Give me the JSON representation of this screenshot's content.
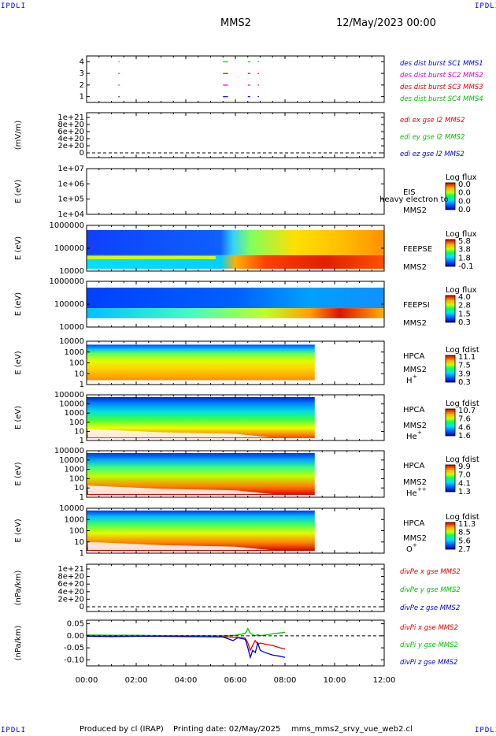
{
  "header": {
    "left_logo": "IPDLI",
    "right_logo": "IPDLI",
    "mission": "MMS2",
    "datetime": "12/May/2023 00:00"
  },
  "footer": {
    "produced_by": "Produced by cl (IRAP)",
    "printing_date": "Printing date: 02/May/2025",
    "file": "mms_mms2_srvy_vue_web2.cl",
    "logo_left": "IPDLI",
    "logo_right": "IPDLI"
  },
  "x_axis": {
    "ticks": [
      "00:00",
      "02:00",
      "04:00",
      "06:00",
      "08:00",
      "10:00",
      "12:00"
    ],
    "range_hours": [
      0,
      12
    ]
  },
  "colors": {
    "red": "#e00000",
    "magenta": "#d000d0",
    "green": "#00c000",
    "blue": "#0000cc",
    "frame": "#000000"
  },
  "chart_data": [
    {
      "type": "scatter",
      "panel": "burst",
      "yticks": [
        "4",
        "3",
        "2",
        "1"
      ],
      "ylim": [
        0.5,
        4.5
      ],
      "legend": [
        {
          "text": "des dist burst SC1 MMS1",
          "color": "#0000cc"
        },
        {
          "text": "des dist burst SC2 MMS2",
          "color": "#d000d0"
        },
        {
          "text": "des dist burst SC3 MMS3",
          "color": "#e00000"
        },
        {
          "text": "des dist burst SC4 MMS4",
          "color": "#00c000"
        }
      ],
      "series": [
        {
          "name": "des dist burst SC1 MMS1",
          "y": 1,
          "x_hours": [
            [
              1.28,
              1.3
            ],
            [
              5.5,
              5.7
            ],
            [
              6.5,
              6.6
            ],
            [
              6.9,
              6.95
            ]
          ]
        },
        {
          "name": "des dist burst SC2 MMS2",
          "y": 2,
          "x_hours": [
            [
              1.28,
              1.3
            ],
            [
              5.5,
              5.7
            ],
            [
              6.5,
              6.6
            ],
            [
              6.9,
              6.95
            ]
          ]
        },
        {
          "name": "des dist burst SC3 MMS3",
          "y": 3,
          "x_hours": [
            [
              1.28,
              1.3
            ],
            [
              5.5,
              5.7
            ],
            [
              6.5,
              6.6
            ],
            [
              6.9,
              6.95
            ]
          ]
        },
        {
          "name": "des dist burst SC4 MMS4",
          "y": 4,
          "x_hours": [
            [
              1.28,
              1.3
            ],
            [
              5.5,
              5.7
            ],
            [
              6.5,
              6.6
            ],
            [
              6.9,
              6.95
            ]
          ]
        }
      ]
    },
    {
      "type": "line",
      "panel": "edi",
      "ylabel": "(mV/m)",
      "yticks": [
        "1e+21",
        "8e+20",
        "6e+20",
        "4e+20",
        "2e+20",
        "0"
      ],
      "yvalues": [
        1e+21,
        8e+20,
        6e+20,
        4e+20,
        2e+20,
        0
      ],
      "legend": [
        {
          "text": "edi ex gse l2 MMS2",
          "color": "#e00000"
        },
        {
          "text": "edi ey gse l2 MMS2",
          "color": "#00c000"
        },
        {
          "text": "edi ez gse l2 MMS2",
          "color": "#0000cc"
        }
      ]
    },
    {
      "type": "heatmap",
      "panel": "eis",
      "ylabel": "E (eV)",
      "yticks": [
        "1e+07",
        "1e+06",
        "1e+05",
        "1e+04"
      ],
      "label": "EIS",
      "label2": "MMS2",
      "overlap_text": "heavy electron to",
      "colorbar": {
        "title": "Log flux",
        "ticks": [
          "0.0",
          "0.0",
          "0.0",
          "0.0"
        ]
      }
    },
    {
      "type": "heatmap",
      "panel": "feepse",
      "ylabel": "E (eV)",
      "yticks": [
        "1000000",
        "100000",
        "10000"
      ],
      "label": "FEEPSE",
      "label2": "MMS2",
      "colorbar": {
        "title": "Log flux",
        "ticks": [
          "5.8",
          "3.8",
          "1.8",
          "-0.1"
        ]
      }
    },
    {
      "type": "heatmap",
      "panel": "feepsi",
      "ylabel": "E (eV)",
      "yticks": [
        "1000000",
        "100000",
        "10000"
      ],
      "label": "FEEPSI",
      "label2": "MMS2",
      "colorbar": {
        "title": "Log flux",
        "ticks": [
          "4.0",
          "2.8",
          "1.5",
          "0.3"
        ]
      }
    },
    {
      "type": "heatmap",
      "panel": "hpca-h",
      "ylabel": "E (eV)",
      "yticks": [
        "10000",
        "1000",
        "100",
        "10",
        "1"
      ],
      "label": "HPCA",
      "label2": "MMS2",
      "species": "H",
      "species_sup": "+",
      "colorbar": {
        "title": "Log fdist",
        "ticks": [
          "11.1",
          "7.5",
          "3.9",
          "0.3"
        ]
      }
    },
    {
      "type": "heatmap",
      "panel": "hpca-he",
      "ylabel": "E (eV)",
      "yticks": [
        "100000",
        "10000",
        "1000",
        "100",
        "10",
        "1"
      ],
      "label": "HPCA",
      "label2": "MMS2",
      "species": "He",
      "species_sup": "+",
      "colorbar": {
        "title": "Log fdist",
        "ticks": [
          "10.7",
          "7.6",
          "4.6",
          "1.6"
        ]
      }
    },
    {
      "type": "heatmap",
      "panel": "hpca-he2",
      "ylabel": "E (eV)",
      "yticks": [
        "100000",
        "10000",
        "1000",
        "100",
        "10",
        "1"
      ],
      "label": "HPCA",
      "label2": "MMS2",
      "species": "He",
      "species_sup": "++",
      "colorbar": {
        "title": "Log fdist",
        "ticks": [
          "9.9",
          "7.0",
          "4.1",
          "1.3"
        ]
      }
    },
    {
      "type": "heatmap",
      "panel": "hpca-o",
      "ylabel": "E (eV)",
      "yticks": [
        "10000",
        "1000",
        "100",
        "10",
        "1"
      ],
      "label": "HPCA",
      "label2": "MMS2",
      "species": "O",
      "species_sup": "+",
      "colorbar": {
        "title": "Log fdist",
        "ticks": [
          "11.3",
          "8.5",
          "5.6",
          "2.7"
        ]
      }
    },
    {
      "type": "line",
      "panel": "divpe",
      "ylabel": "(nPa/km)",
      "yticks": [
        "1e+21",
        "8e+20",
        "6e+20",
        "4e+20",
        "2e+20",
        "0"
      ],
      "legend": [
        {
          "text": "divPe x gse MMS2",
          "color": "#e00000"
        },
        {
          "text": "divPe y gse MMS2",
          "color": "#00c000"
        },
        {
          "text": "divPe z gse MMS2",
          "color": "#0000cc"
        }
      ]
    },
    {
      "type": "line",
      "panel": "divpi",
      "ylabel": "(nPa/km)",
      "yticks": [
        "0.05",
        "0.00",
        "-0.05",
        "-0.10"
      ],
      "yvalues": [
        0.05,
        0.0,
        -0.05,
        -0.1
      ],
      "ylim": [
        -0.125,
        0.065
      ],
      "legend": [
        {
          "text": "divPi x gse MMS2",
          "color": "#e00000"
        },
        {
          "text": "divPi y gse MMS2",
          "color": "#00c000"
        },
        {
          "text": "divPi z gse MMS2",
          "color": "#0000cc"
        }
      ],
      "series": [
        {
          "name": "divPi x gse MMS2",
          "color": "#e00000",
          "x": [
            0,
            1,
            2,
            3,
            4,
            5,
            5.5,
            6,
            6.4,
            6.5,
            6.6,
            6.7,
            6.8,
            6.9,
            7.0,
            7.2,
            7.5,
            7.8,
            8.0
          ],
          "y": [
            0.0,
            0.0,
            0.0,
            0.0,
            -0.002,
            -0.003,
            -0.004,
            -0.006,
            -0.01,
            -0.03,
            -0.06,
            -0.04,
            -0.02,
            -0.035,
            -0.03,
            -0.035,
            -0.04,
            -0.05,
            -0.055
          ]
        },
        {
          "name": "divPi y gse MMS2",
          "color": "#00c000",
          "x": [
            0,
            1,
            2,
            3,
            4,
            5,
            5.5,
            6,
            6.4,
            6.5,
            6.6,
            6.7,
            6.8,
            6.9,
            7.0,
            7.2,
            7.5,
            7.8,
            8.0
          ],
          "y": [
            0.003,
            0.002,
            0.002,
            0.001,
            0.001,
            0.0,
            0.0,
            0.002,
            0.01,
            0.03,
            0.01,
            0.005,
            0.0,
            0.005,
            0.0,
            0.003,
            0.008,
            0.012,
            0.015
          ]
        },
        {
          "name": "divPi z gse MMS2",
          "color": "#0000cc",
          "x": [
            0,
            1,
            2,
            3,
            4,
            5,
            5.5,
            5.9,
            6.1,
            6.4,
            6.5,
            6.6,
            6.7,
            6.8,
            6.9,
            7.0,
            7.2,
            7.5,
            7.8,
            8.0
          ],
          "y": [
            -0.002,
            -0.003,
            -0.002,
            -0.002,
            -0.003,
            -0.004,
            -0.005,
            -0.02,
            -0.008,
            -0.015,
            -0.05,
            -0.09,
            -0.06,
            -0.07,
            -0.03,
            -0.06,
            -0.07,
            -0.08,
            -0.085,
            -0.09
          ]
        }
      ]
    }
  ]
}
